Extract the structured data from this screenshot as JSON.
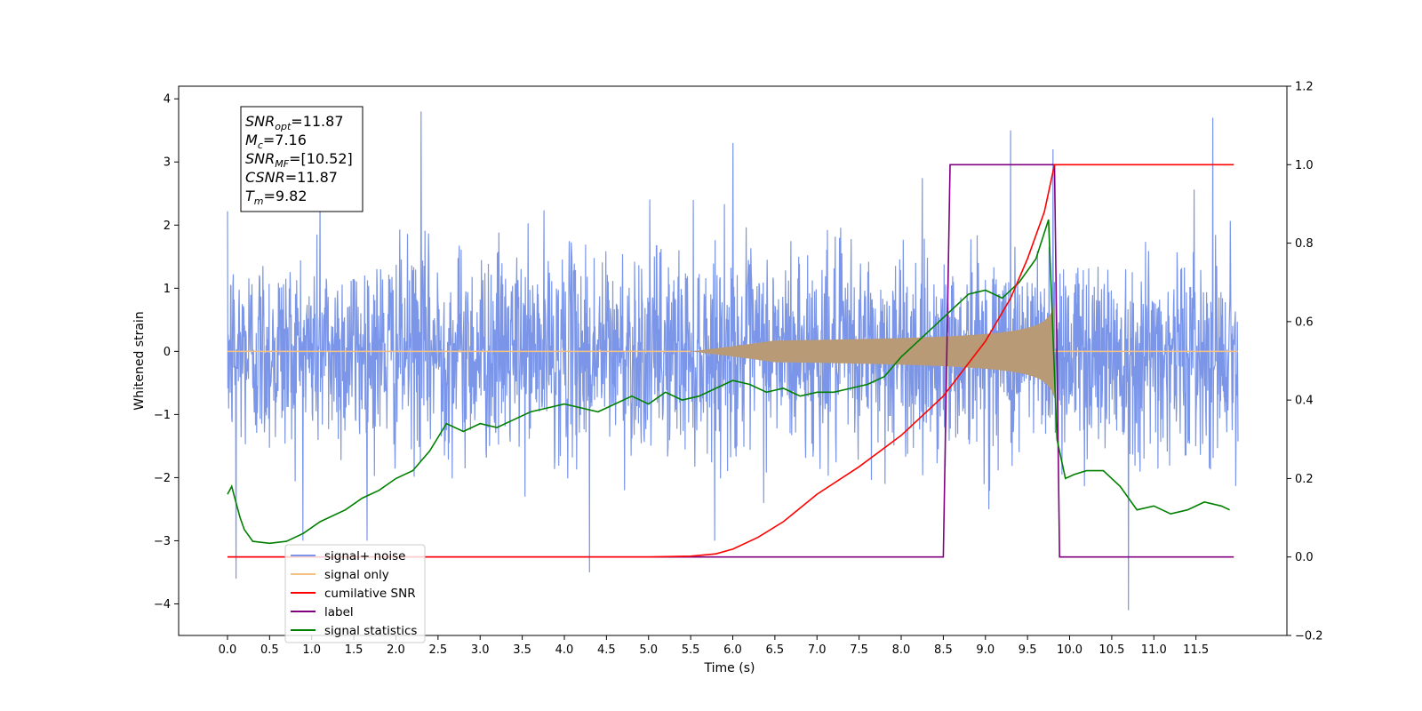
{
  "chart_data": {
    "type": "line",
    "xlabel": "Time (s)",
    "ylabel": "Whitened strain",
    "xlim": [
      -0.58,
      12.58
    ],
    "ylim": [
      -4.5,
      4.2
    ],
    "ylim_right": [
      -0.2,
      1.2
    ],
    "xticks": [
      "0.0",
      "0.5",
      "1.0",
      "1.5",
      "2.0",
      "2.5",
      "3.0",
      "3.5",
      "4.0",
      "4.5",
      "5.0",
      "5.5",
      "6.0",
      "6.5",
      "7.0",
      "7.5",
      "8.0",
      "8.5",
      "9.0",
      "9.5",
      "10.0",
      "10.5",
      "11.0",
      "11.5"
    ],
    "yticks_left": [
      "4",
      "3",
      "2",
      "1",
      "0",
      "−1",
      "−2",
      "−3",
      "−4"
    ],
    "yticks_right": [
      "1.2",
      "1.0",
      "0.8",
      "0.6",
      "0.4",
      "0.2",
      "0.0",
      "−0.2"
    ],
    "grid": false,
    "legend_position": "lower-left",
    "annotation": {
      "lines": [
        {
          "symbol": "SNR",
          "sub": "opt",
          "value": "=11.87"
        },
        {
          "symbol": "M",
          "sub": "c",
          "value": "=7.16"
        },
        {
          "symbol": "SNR",
          "sub": "MF",
          "value": "=[10.52]"
        },
        {
          "symbol": "CSNR",
          "sub": "",
          "value": "=11.87"
        },
        {
          "symbol": "T",
          "sub": "m",
          "value": "=9.82"
        }
      ]
    },
    "series": [
      {
        "name": "signal+ noise",
        "axis": "left",
        "color": "#7b96e8",
        "description_of_values": "white noise, std ≈ 0.8, t from 0 to 12 s, extremes about +3.8 and −4.1",
        "t_range": [
          0,
          12
        ],
        "noise_std": 0.8,
        "peaks": [
          [
            0.1,
            -3.6
          ],
          [
            1.1,
            2.5
          ],
          [
            2.3,
            3.8
          ],
          [
            4.3,
            -3.5
          ],
          [
            6.0,
            3.3
          ],
          [
            9.3,
            3.5
          ],
          [
            9.8,
            3.2
          ],
          [
            10.7,
            -4.1
          ],
          [
            11.7,
            3.7
          ]
        ]
      },
      {
        "name": "signal only",
        "axis": "left",
        "color": "#f4c084",
        "description_of_values": "chirp, amplitude grows from ~0 at 5.5 s to ~0.75 at 9.8 s then stops",
        "t_start": 5.5,
        "t_merge": 9.82,
        "peak_amplitude": 0.75
      },
      {
        "name": "cumilative SNR",
        "axis": "right",
        "color": "#ff0000",
        "x": [
          0,
          5.0,
          5.5,
          5.8,
          6.0,
          6.3,
          6.6,
          7.0,
          7.5,
          8.0,
          8.5,
          9.0,
          9.3,
          9.5,
          9.7,
          9.82,
          11.95
        ],
        "y": [
          0,
          0,
          0.002,
          0.008,
          0.02,
          0.05,
          0.09,
          0.16,
          0.23,
          0.31,
          0.41,
          0.55,
          0.66,
          0.76,
          0.88,
          1.0,
          1.0
        ]
      },
      {
        "name": "label",
        "axis": "right",
        "color": "#800080",
        "x": [
          0,
          8.5,
          8.58,
          9.82,
          9.88,
          11.95
        ],
        "y": [
          0,
          0,
          1,
          1,
          0,
          0
        ]
      },
      {
        "name": "signal statistics",
        "axis": "right",
        "color": "#008000",
        "x": [
          0,
          0.05,
          0.1,
          0.15,
          0.2,
          0.3,
          0.5,
          0.7,
          0.9,
          1.1,
          1.4,
          1.6,
          1.8,
          2.0,
          2.2,
          2.4,
          2.6,
          2.8,
          3.0,
          3.2,
          3.4,
          3.6,
          3.8,
          4.0,
          4.2,
          4.4,
          4.6,
          4.8,
          5.0,
          5.2,
          5.4,
          5.6,
          5.8,
          6.0,
          6.2,
          6.4,
          6.6,
          6.8,
          7.0,
          7.2,
          7.4,
          7.6,
          7.8,
          8.0,
          8.2,
          8.4,
          8.6,
          8.8,
          9.0,
          9.2,
          9.4,
          9.6,
          9.75,
          9.85,
          9.95,
          10.05,
          10.2,
          10.4,
          10.6,
          10.8,
          11.0,
          11.2,
          11.4,
          11.6,
          11.8,
          11.9
        ],
        "y": [
          0.16,
          0.18,
          0.14,
          0.1,
          0.07,
          0.04,
          0.035,
          0.04,
          0.06,
          0.09,
          0.12,
          0.15,
          0.17,
          0.2,
          0.22,
          0.27,
          0.34,
          0.32,
          0.34,
          0.33,
          0.35,
          0.37,
          0.38,
          0.39,
          0.38,
          0.37,
          0.39,
          0.41,
          0.39,
          0.42,
          0.4,
          0.41,
          0.43,
          0.45,
          0.44,
          0.42,
          0.43,
          0.41,
          0.42,
          0.42,
          0.43,
          0.44,
          0.46,
          0.51,
          0.55,
          0.59,
          0.63,
          0.67,
          0.68,
          0.66,
          0.7,
          0.76,
          0.86,
          0.3,
          0.2,
          0.21,
          0.22,
          0.22,
          0.18,
          0.12,
          0.13,
          0.11,
          0.12,
          0.14,
          0.13,
          0.12
        ]
      }
    ]
  }
}
